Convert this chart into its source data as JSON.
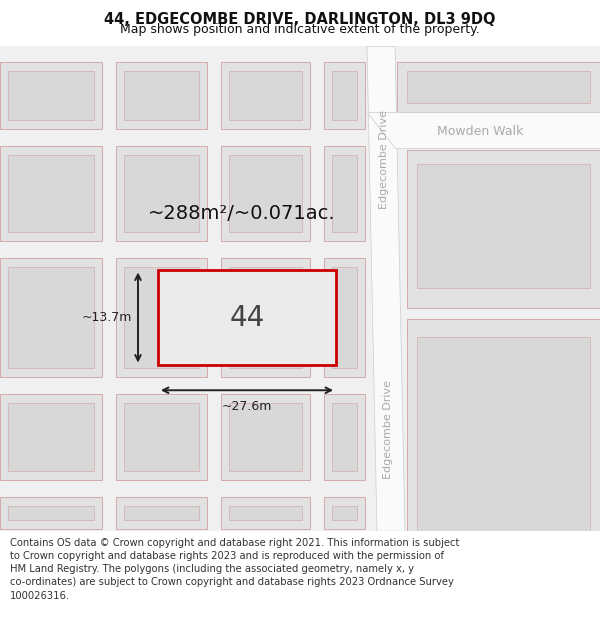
{
  "title": "44, EDGECOMBE DRIVE, DARLINGTON, DL3 9DQ",
  "subtitle": "Map shows position and indicative extent of the property.",
  "footer": "Contains OS data © Crown copyright and database right 2021. This information is subject\nto Crown copyright and database rights 2023 and is reproduced with the permission of\nHM Land Registry. The polygons (including the associated geometry, namely x, y\nco-ordinates) are subject to Crown copyright and database rights 2023 Ordnance Survey\n100026316.",
  "map_bg": "#f0f0f0",
  "block_fc": "#e2e2e2",
  "block_ec": "#d4aaaa",
  "road_fc": "#fafafa",
  "prop_ec": "#cc0000",
  "prop_fc": "#ebebeb",
  "street_color": "#aaaaaa",
  "dim_color": "#222222",
  "area_label": "~288m²/~0.071ac.",
  "number_label": "44",
  "width_label": "~27.6m",
  "height_label": "~13.7m",
  "street_edgecombe1": "Edgecombe Drive",
  "street_edgecombe2": "Edgecombe Drive",
  "street_mowden": "Mowden Walk",
  "title_fontsize": 10.5,
  "subtitle_fontsize": 9,
  "footer_fontsize": 7.2,
  "area_fontsize": 14,
  "number_fontsize": 20,
  "dim_fontsize": 9,
  "street_fontsize": 8
}
